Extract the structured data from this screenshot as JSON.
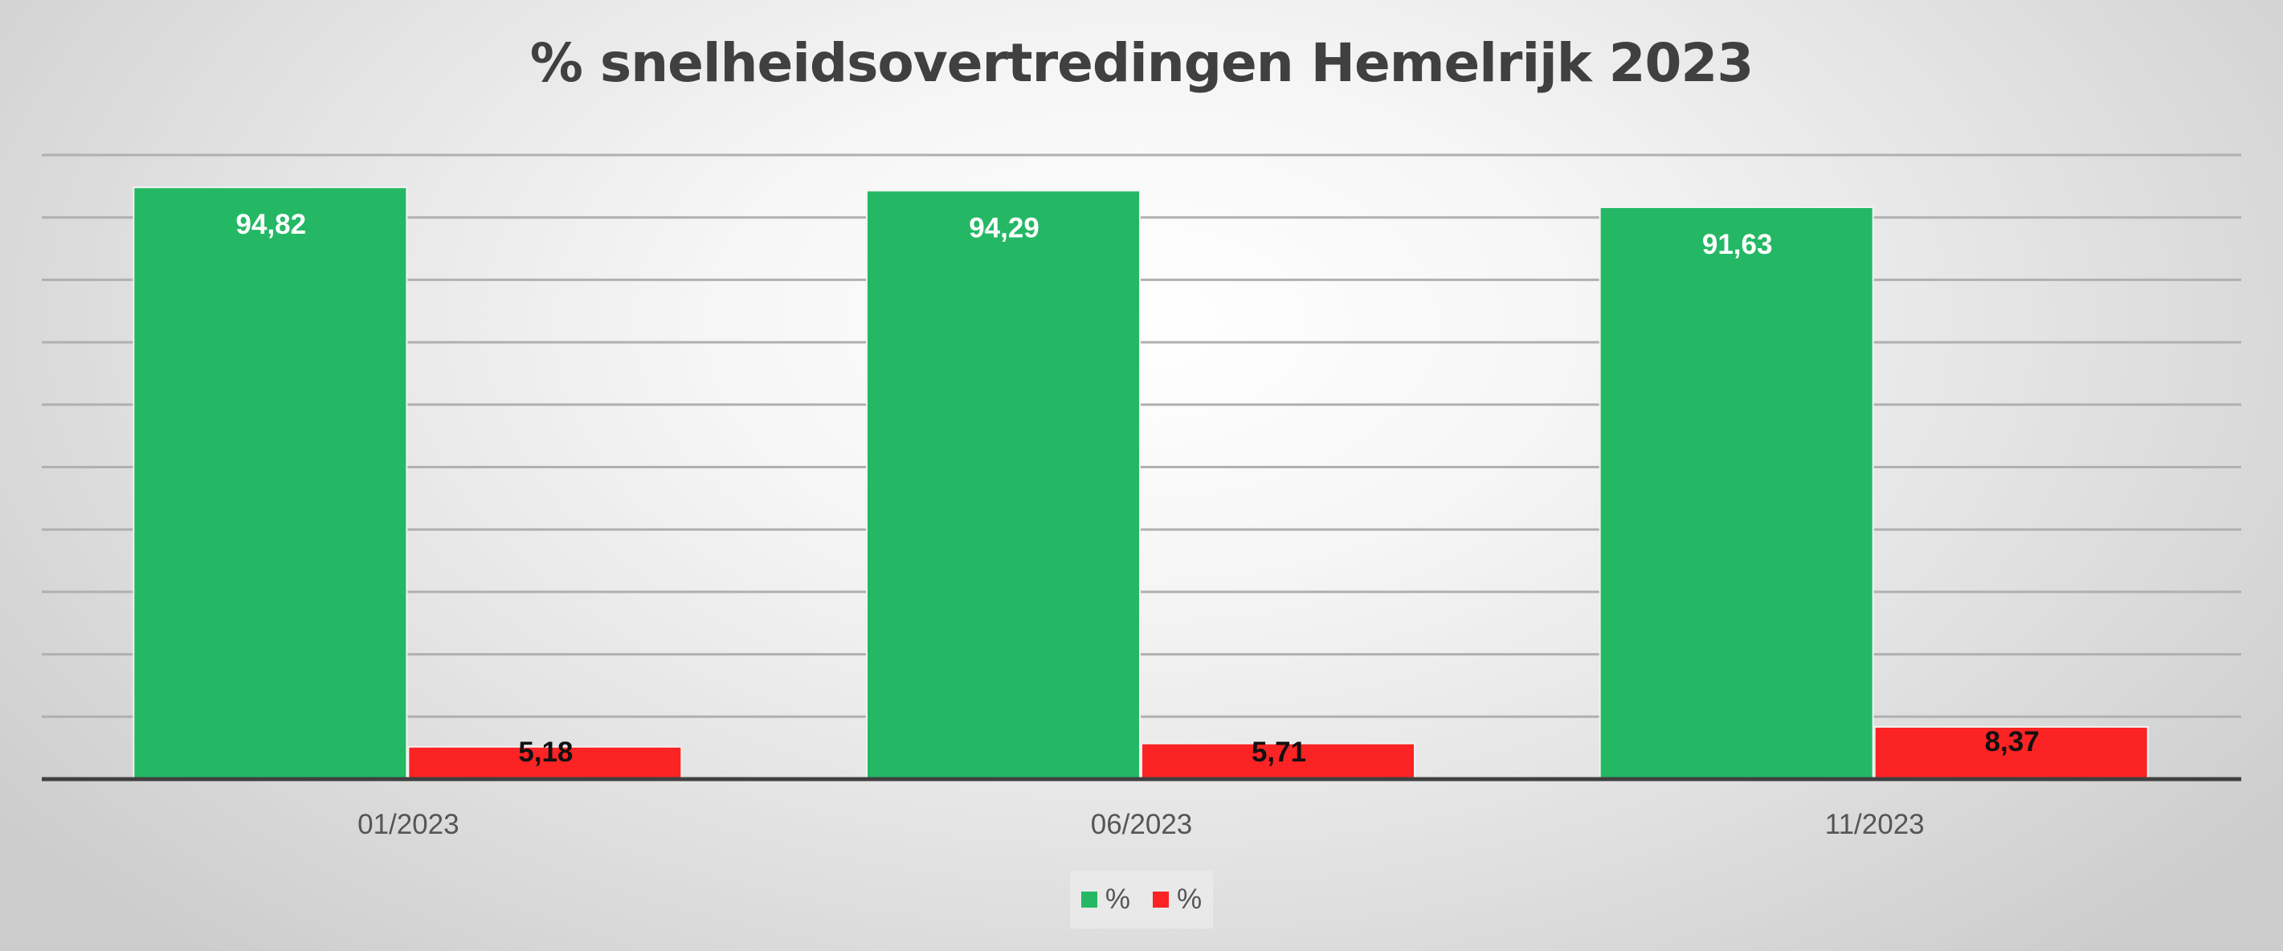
{
  "chart_data": {
    "type": "bar",
    "title": "% snelheidsovertredingen Hemelrijk 2023",
    "categories": [
      "01/2023",
      "06/2023",
      "11/2023"
    ],
    "series": [
      {
        "name": "%",
        "color": "#24b865",
        "values": [
          94.82,
          94.29,
          91.63
        ],
        "labels": [
          "94,82",
          "94,29",
          "91,63"
        ],
        "label_color": "#ffffff"
      },
      {
        "name": "%",
        "color": "#fb2323",
        "values": [
          5.18,
          5.71,
          8.37
        ],
        "labels": [
          "5,18",
          "5,71",
          "8,37"
        ],
        "label_color": "#111111"
      }
    ],
    "ylim": [
      0,
      100
    ],
    "y_gridlines": 10,
    "y_tick_labels_visible": false,
    "grid": true,
    "legend": "bottom",
    "xlabel": "",
    "ylabel": ""
  }
}
